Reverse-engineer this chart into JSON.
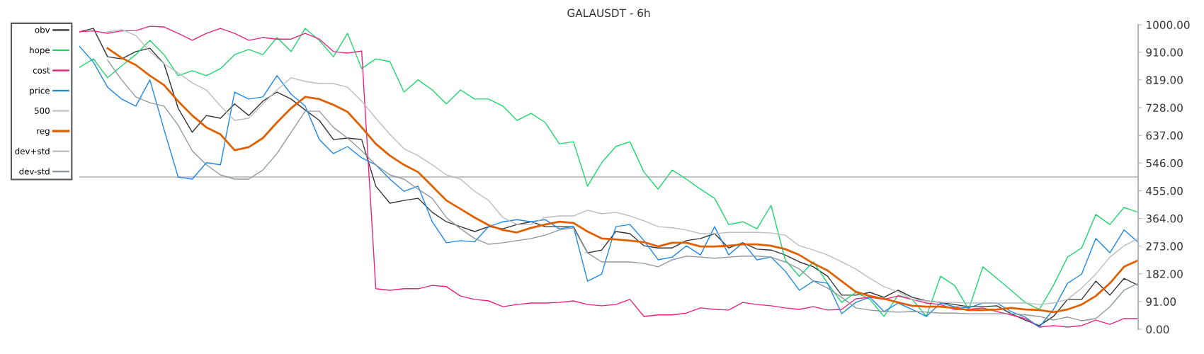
{
  "chart_data": {
    "type": "line",
    "title": "GALAUSDT - 6h",
    "categories": [
      null,
      null,
      null,
      null,
      null,
      null,
      null,
      null,
      null,
      null,
      null,
      null,
      null,
      null,
      null,
      null,
      null,
      null,
      null,
      null,
      null,
      null,
      null,
      null,
      null,
      null,
      null,
      null,
      null,
      null,
      null,
      null,
      null,
      null,
      null,
      null,
      null,
      null,
      null,
      null,
      null,
      null,
      null,
      null,
      null,
      null,
      null,
      null,
      null,
      null,
      null,
      null,
      null,
      null,
      null,
      null,
      null,
      null,
      null,
      null,
      null,
      null,
      null,
      null,
      null,
      null,
      null,
      null,
      null,
      null,
      null,
      null,
      null,
      null,
      null,
      null
    ],
    "series": [
      {
        "name": "obv",
        "color": "#333333",
        "values": [
          977,
          988,
          895,
          888,
          912,
          923,
          872,
          726,
          647,
          702,
          693,
          740,
          702,
          749,
          779,
          756,
          720,
          686,
          623,
          628,
          623,
          470,
          414,
          423,
          430,
          384,
          353,
          337,
          321,
          337,
          330,
          344,
          353,
          337,
          337,
          337,
          251,
          260,
          321,
          314,
          274,
          267,
          267,
          291,
          298,
          314,
          267,
          284,
          263,
          260,
          244,
          221,
          205,
          174,
          112,
          112,
          121,
          105,
          128,
          105,
          93,
          88,
          81,
          74,
          74,
          77,
          51,
          30,
          12,
          42,
          98,
          98,
          158,
          112,
          167,
          144
        ]
      },
      {
        "name": "hope",
        "color": "#1ed66c",
        "values": [
          860,
          888,
          826,
          865,
          902,
          949,
          902,
          833,
          849,
          833,
          856,
          902,
          919,
          902,
          958,
          912,
          988,
          949,
          895,
          972,
          856,
          888,
          879,
          779,
          819,
          786,
          740,
          786,
          756,
          756,
          733,
          686,
          709,
          679,
          609,
          616,
          470,
          547,
          600,
          616,
          516,
          460,
          523,
          493,
          460,
          430,
          344,
          353,
          330,
          407,
          228,
          174,
          221,
          151,
          88,
          121,
          98,
          42,
          112,
          98,
          42,
          174,
          144,
          65,
          205,
          167,
          128,
          88,
          65,
          144,
          237,
          267,
          377,
          344,
          400,
          384
        ]
      },
      {
        "name": "cost",
        "color": "#e8237f",
        "values": [
          977,
          980,
          972,
          980,
          981,
          995,
          993,
          972,
          949,
          972,
          988,
          972,
          949,
          958,
          953,
          953,
          972,
          953,
          912,
          907,
          914,
          133,
          128,
          133,
          133,
          144,
          140,
          109,
          98,
          93,
          74,
          81,
          86,
          86,
          88,
          93,
          81,
          77,
          81,
          98,
          42,
          47,
          47,
          53,
          70,
          65,
          63,
          88,
          81,
          77,
          70,
          65,
          74,
          63,
          65,
          100,
          105,
          98,
          109,
          98,
          86,
          81,
          65,
          65,
          70,
          58,
          47,
          35,
          7,
          12,
          7,
          12,
          30,
          16,
          35,
          35
        ]
      },
      {
        "name": "price",
        "color": "#1e88e5",
        "values": [
          930,
          877,
          795,
          756,
          733,
          819,
          656,
          500,
          493,
          547,
          540,
          779,
          756,
          763,
          833,
          772,
          733,
          623,
          577,
          600,
          563,
          540,
          493,
          453,
          470,
          353,
          284,
          291,
          287,
          337,
          353,
          360,
          353,
          360,
          330,
          337,
          158,
          181,
          337,
          344,
          291,
          228,
          237,
          274,
          244,
          337,
          244,
          284,
          228,
          237,
          191,
          128,
          158,
          151,
          51,
          88,
          105,
          58,
          86,
          65,
          42,
          86,
          74,
          70,
          86,
          86,
          58,
          40,
          7,
          65,
          151,
          181,
          298,
          251,
          326,
          286
        ]
      },
      {
        "name": "reg",
        "color": "#e06000",
        "values": [
          null,
          null,
          923,
          891,
          868,
          833,
          802,
          749,
          702,
          663,
          640,
          588,
          598,
          628,
          679,
          726,
          763,
          756,
          737,
          714,
          663,
          609,
          570,
          540,
          516,
          470,
          423,
          395,
          367,
          342,
          326,
          318,
          333,
          344,
          353,
          349,
          321,
          298,
          295,
          291,
          286,
          272,
          284,
          284,
          272,
          272,
          274,
          279,
          279,
          274,
          263,
          244,
          216,
          193,
          158,
          123,
          109,
          100,
          88,
          77,
          74,
          74,
          70,
          63,
          63,
          65,
          70,
          65,
          63,
          56,
          65,
          81,
          109,
          151,
          205,
          226
        ]
      },
      {
        "name": "dev+std",
        "color": "#b8bec4",
        "values": [
          null,
          null,
          977,
          984,
          965,
          912,
          872,
          842,
          809,
          786,
          733,
          686,
          693,
          740,
          786,
          826,
          814,
          807,
          807,
          795,
          749,
          693,
          640,
          593,
          570,
          540,
          507,
          493,
          453,
          423,
          367,
          344,
          344,
          367,
          372,
          372,
          391,
          379,
          384,
          372,
          356,
          337,
          333,
          326,
          314,
          314,
          318,
          318,
          318,
          316,
          309,
          274,
          260,
          244,
          221,
          198,
          167,
          140,
          123,
          98,
          93,
          88,
          88,
          86,
          86,
          86,
          86,
          86,
          81,
          86,
          98,
          135,
          181,
          237,
          274,
          298
        ]
      },
      {
        "name": "dev-std",
        "color": "#8e98a0",
        "values": [
          null,
          null,
          884,
          819,
          763,
          744,
          733,
          670,
          586,
          540,
          507,
          493,
          493,
          523,
          577,
          647,
          716,
          716,
          663,
          628,
          586,
          540,
          507,
          493,
          460,
          430,
          367,
          330,
          298,
          279,
          284,
          291,
          298,
          309,
          326,
          333,
          251,
          221,
          221,
          221,
          216,
          205,
          228,
          240,
          237,
          233,
          237,
          240,
          240,
          237,
          221,
          198,
          158,
          135,
          105,
          70,
          63,
          58,
          56,
          58,
          56,
          53,
          53,
          51,
          51,
          51,
          51,
          47,
          42,
          30,
          40,
          28,
          35,
          74,
          128,
          151
        ]
      }
    ],
    "ref_lines": [
      {
        "axis": "y",
        "value": 500,
        "label": "500",
        "color": "#c4c4c4"
      }
    ],
    "ylim": [
      0,
      1000
    ],
    "yticks": [
      {
        "value": 0,
        "label": "0.00"
      },
      {
        "value": 91,
        "label": "91.00"
      },
      {
        "value": 182,
        "label": "182.00"
      },
      {
        "value": 273,
        "label": "273.00"
      },
      {
        "value": 364,
        "label": "364.00"
      },
      {
        "value": 455,
        "label": "455.00"
      },
      {
        "value": 546,
        "label": "546.00"
      },
      {
        "value": 637,
        "label": "637.00"
      },
      {
        "value": 728,
        "label": "728.00"
      },
      {
        "value": 819,
        "label": "819.00"
      },
      {
        "value": 910,
        "label": "910.00"
      },
      {
        "value": 1000,
        "label": "1000.00"
      }
    ],
    "tick_labels": "y",
    "grid": false,
    "legend": "top left",
    "marker": "none",
    "line_style": "solid"
  }
}
